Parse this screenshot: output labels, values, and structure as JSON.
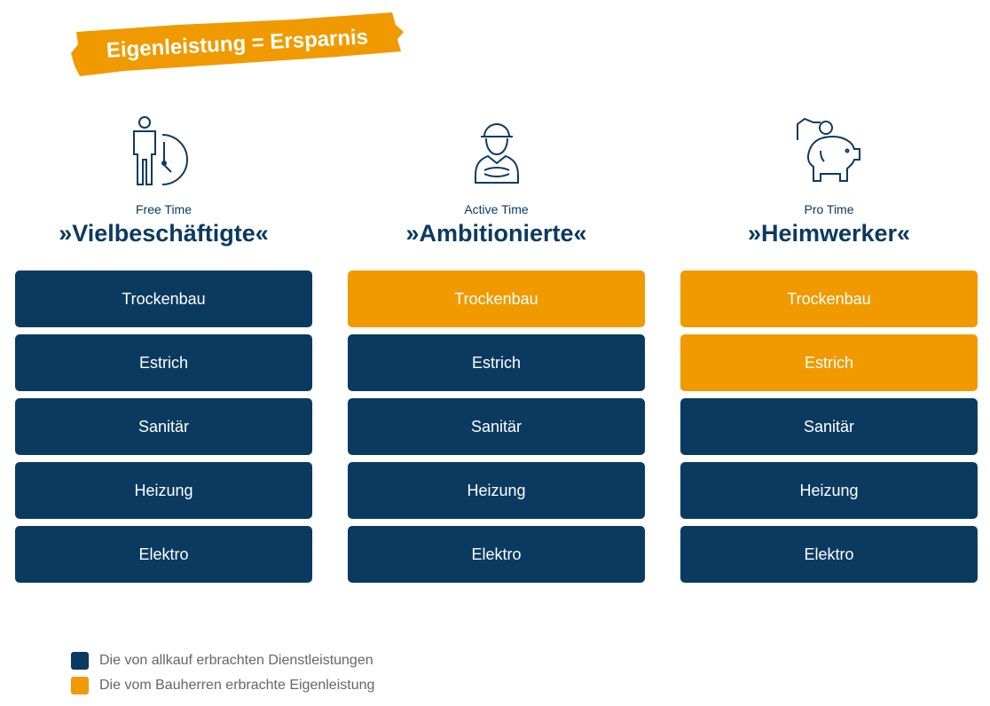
{
  "banner": {
    "text": "Eigenleistung = Ersparnis"
  },
  "colors": {
    "navy": "#0b3a60",
    "orange": "#f09a00"
  },
  "columns": [
    {
      "icon": "person-clock-icon",
      "subtitle": "Free Time",
      "title": "»Vielbeschäftigte«",
      "items": [
        {
          "label": "Trockenbau",
          "own": false
        },
        {
          "label": "Estrich",
          "own": false
        },
        {
          "label": "Sanitär",
          "own": false
        },
        {
          "label": "Heizung",
          "own": false
        },
        {
          "label": "Elektro",
          "own": false
        }
      ]
    },
    {
      "icon": "construction-worker-icon",
      "subtitle": "Active Time",
      "title": "»Ambitionierte«",
      "items": [
        {
          "label": "Trockenbau",
          "own": true
        },
        {
          "label": "Estrich",
          "own": false
        },
        {
          "label": "Sanitär",
          "own": false
        },
        {
          "label": "Heizung",
          "own": false
        },
        {
          "label": "Elektro",
          "own": false
        }
      ]
    },
    {
      "icon": "piggy-bank-icon",
      "subtitle": "Pro Time",
      "title": "»Heimwerker«",
      "items": [
        {
          "label": "Trockenbau",
          "own": true
        },
        {
          "label": "Estrich",
          "own": true
        },
        {
          "label": "Sanitär",
          "own": false
        },
        {
          "label": "Heizung",
          "own": false
        },
        {
          "label": "Elektro",
          "own": false
        }
      ]
    }
  ],
  "legend": [
    {
      "color": "navy",
      "label": "Die von allkauf erbrachten Dienstleistungen"
    },
    {
      "color": "orange",
      "label": "Die vom Bauherren erbrachte Eigenleistung"
    }
  ]
}
